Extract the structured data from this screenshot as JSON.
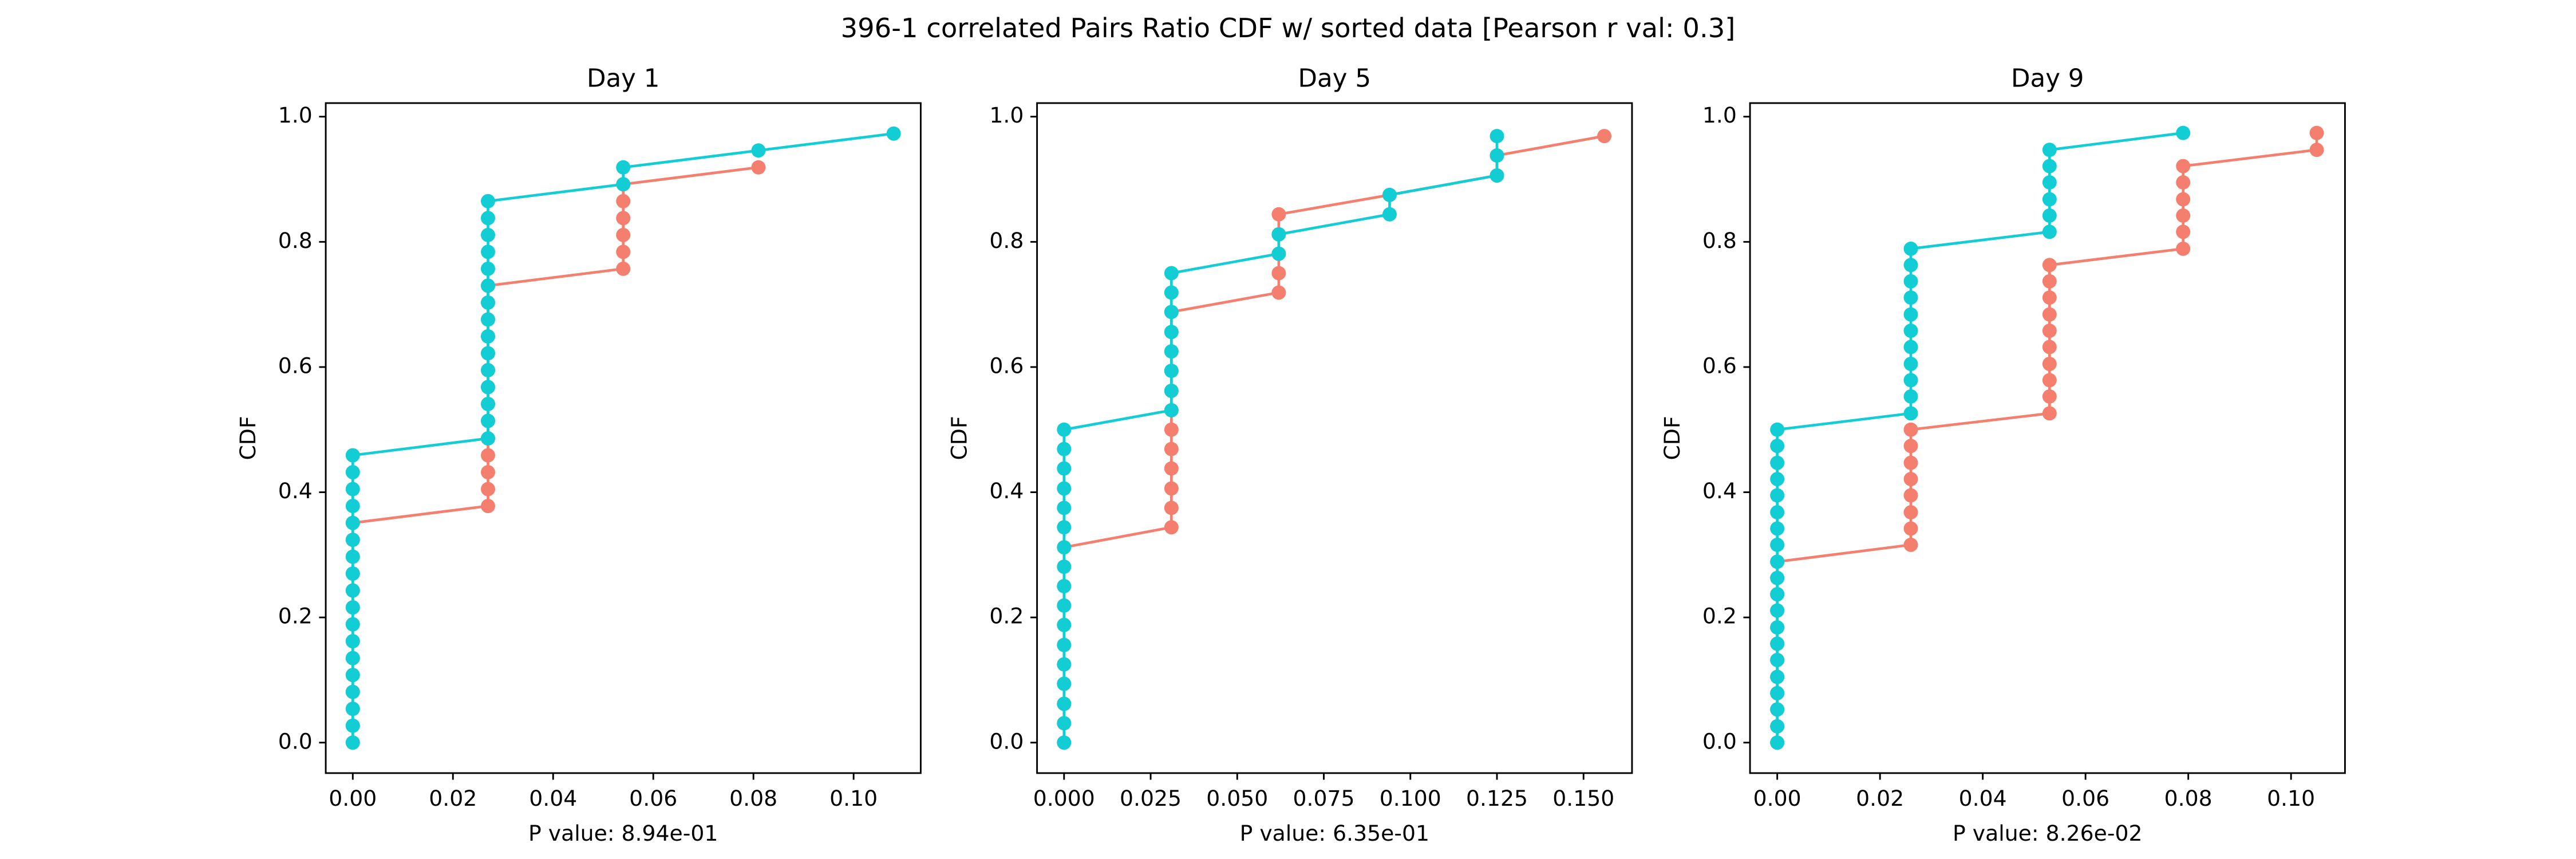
{
  "title": "396-1 correlated Pairs Ratio CDF w/ sorted data [Pearson r val: 0.3]",
  "chart_data": [
    {
      "type": "line",
      "title": "Day 1",
      "ylabel": "CDF",
      "xlabel": "P value: 8.94e-01",
      "xlim": [
        -0.0054,
        0.1134
      ],
      "ylim": [
        -0.0487,
        1.0217
      ],
      "xticks": [
        {
          "value": 0,
          "label": "0.00"
        },
        0.02,
        0.04,
        0.06,
        0.08,
        {
          "value": 0.1,
          "label": "0.10"
        }
      ],
      "yticks": [
        {
          "value": 0,
          "label": "0.0"
        },
        0.2,
        0.4,
        0.6,
        0.8,
        {
          "value": 1,
          "label": "1.0"
        }
      ],
      "series": [
        {
          "color": "#f47f6f",
          "x": [
            0,
            0,
            0,
            0,
            0,
            0,
            0,
            0,
            0,
            0,
            0,
            0,
            0,
            0,
            0.027,
            0.027,
            0.027,
            0.027,
            0.027,
            0.027,
            0.027,
            0.027,
            0.027,
            0.027,
            0.027,
            0.027,
            0.027,
            0.027,
            0.054,
            0.054,
            0.054,
            0.054,
            0.054,
            0.054,
            0.081
          ],
          "values": [
            0,
            0.027,
            0.054,
            0.081,
            0.108,
            0.135,
            0.162,
            0.189,
            0.216,
            0.243,
            0.27,
            0.297,
            0.324,
            0.351,
            0.378,
            0.405,
            0.432,
            0.459,
            0.486,
            0.514,
            0.541,
            0.568,
            0.595,
            0.622,
            0.649,
            0.676,
            0.703,
            0.73,
            0.757,
            0.784,
            0.811,
            0.838,
            0.865,
            0.892,
            0.919
          ]
        },
        {
          "color": "#12cdd4",
          "x": [
            0,
            0,
            0,
            0,
            0,
            0,
            0,
            0,
            0,
            0,
            0,
            0,
            0,
            0,
            0,
            0,
            0,
            0,
            0.027,
            0.027,
            0.027,
            0.027,
            0.027,
            0.027,
            0.027,
            0.027,
            0.027,
            0.027,
            0.027,
            0.027,
            0.027,
            0.027,
            0.027,
            0.054,
            0.054,
            0.081,
            0.108
          ],
          "values": [
            0,
            0.027,
            0.054,
            0.081,
            0.108,
            0.135,
            0.162,
            0.189,
            0.216,
            0.243,
            0.27,
            0.297,
            0.324,
            0.351,
            0.378,
            0.405,
            0.432,
            0.459,
            0.486,
            0.514,
            0.541,
            0.568,
            0.595,
            0.622,
            0.649,
            0.676,
            0.703,
            0.73,
            0.757,
            0.784,
            0.811,
            0.838,
            0.865,
            0.892,
            0.919,
            0.946,
            0.973
          ]
        }
      ]
    },
    {
      "type": "line",
      "title": "Day 5",
      "ylabel": "CDF",
      "xlabel": "P value: 6.35e-01",
      "xlim": [
        -0.0078,
        0.164
      ],
      "ylim": [
        -0.0487,
        1.0217
      ],
      "xticks": [
        {
          "value": 0,
          "label": "0.000"
        },
        0.025,
        {
          "value": 0.05,
          "label": "0.050"
        },
        0.075,
        {
          "value": 0.1,
          "label": "0.100"
        },
        0.125,
        {
          "value": 0.15,
          "label": "0.150"
        }
      ],
      "yticks": [
        {
          "value": 0,
          "label": "0.0"
        },
        0.2,
        0.4,
        0.6,
        0.8,
        {
          "value": 1,
          "label": "1.0"
        }
      ],
      "series": [
        {
          "color": "#f47f6f",
          "x": [
            0,
            0,
            0,
            0,
            0,
            0,
            0,
            0,
            0,
            0,
            0,
            0.031,
            0.031,
            0.031,
            0.031,
            0.031,
            0.031,
            0.031,
            0.031,
            0.031,
            0.031,
            0.031,
            0.031,
            0.062,
            0.062,
            0.062,
            0.062,
            0.062,
            0.094,
            0.125,
            0.125,
            0.156
          ],
          "values": [
            0,
            0.031,
            0.062,
            0.094,
            0.125,
            0.156,
            0.188,
            0.219,
            0.25,
            0.281,
            0.312,
            0.344,
            0.375,
            0.406,
            0.438,
            0.469,
            0.5,
            0.531,
            0.562,
            0.594,
            0.625,
            0.656,
            0.688,
            0.719,
            0.75,
            0.781,
            0.812,
            0.844,
            0.875,
            0.906,
            0.938,
            0.969
          ]
        },
        {
          "color": "#12cdd4",
          "x": [
            0,
            0,
            0,
            0,
            0,
            0,
            0,
            0,
            0,
            0,
            0,
            0,
            0,
            0,
            0,
            0,
            0,
            0.031,
            0.031,
            0.031,
            0.031,
            0.031,
            0.031,
            0.031,
            0.031,
            0.062,
            0.062,
            0.094,
            0.094,
            0.125,
            0.125,
            0.125
          ],
          "values": [
            0,
            0.031,
            0.062,
            0.094,
            0.125,
            0.156,
            0.188,
            0.219,
            0.25,
            0.281,
            0.312,
            0.344,
            0.375,
            0.406,
            0.438,
            0.469,
            0.5,
            0.531,
            0.562,
            0.594,
            0.625,
            0.656,
            0.688,
            0.719,
            0.75,
            0.781,
            0.812,
            0.844,
            0.875,
            0.906,
            0.938,
            0.969
          ]
        }
      ]
    },
    {
      "type": "line",
      "title": "Day 9",
      "ylabel": "CDF",
      "xlabel": "P value: 8.26e-02",
      "xlim": [
        -0.0053,
        0.1105
      ],
      "ylim": [
        -0.0487,
        1.0217
      ],
      "xticks": [
        {
          "value": 0,
          "label": "0.00"
        },
        0.02,
        0.04,
        0.06,
        0.08,
        {
          "value": 0.1,
          "label": "0.10"
        }
      ],
      "yticks": [
        {
          "value": 0,
          "label": "0.0"
        },
        0.2,
        0.4,
        0.6,
        0.8,
        {
          "value": 1,
          "label": "1.0"
        }
      ],
      "series": [
        {
          "color": "#f47f6f",
          "x": [
            0,
            0,
            0,
            0,
            0,
            0,
            0,
            0,
            0,
            0,
            0,
            0,
            0.026,
            0.026,
            0.026,
            0.026,
            0.026,
            0.026,
            0.026,
            0.026,
            0.053,
            0.053,
            0.053,
            0.053,
            0.053,
            0.053,
            0.053,
            0.053,
            0.053,
            0.053,
            0.079,
            0.079,
            0.079,
            0.079,
            0.079,
            0.079,
            0.105,
            0.105
          ],
          "values": [
            0,
            0.026,
            0.053,
            0.079,
            0.105,
            0.132,
            0.158,
            0.184,
            0.211,
            0.237,
            0.263,
            0.289,
            0.316,
            0.342,
            0.368,
            0.395,
            0.421,
            0.447,
            0.474,
            0.5,
            0.526,
            0.553,
            0.579,
            0.605,
            0.632,
            0.658,
            0.684,
            0.711,
            0.737,
            0.763,
            0.789,
            0.816,
            0.842,
            0.868,
            0.895,
            0.921,
            0.947,
            0.974
          ]
        },
        {
          "color": "#12cdd4",
          "x": [
            0,
            0,
            0,
            0,
            0,
            0,
            0,
            0,
            0,
            0,
            0,
            0,
            0,
            0,
            0,
            0,
            0,
            0,
            0,
            0,
            0.026,
            0.026,
            0.026,
            0.026,
            0.026,
            0.026,
            0.026,
            0.026,
            0.026,
            0.026,
            0.026,
            0.053,
            0.053,
            0.053,
            0.053,
            0.053,
            0.053,
            0.079
          ],
          "values": [
            0,
            0.026,
            0.053,
            0.079,
            0.105,
            0.132,
            0.158,
            0.184,
            0.211,
            0.237,
            0.263,
            0.289,
            0.316,
            0.342,
            0.368,
            0.395,
            0.421,
            0.447,
            0.474,
            0.5,
            0.526,
            0.553,
            0.579,
            0.605,
            0.632,
            0.658,
            0.684,
            0.711,
            0.737,
            0.763,
            0.789,
            0.816,
            0.842,
            0.868,
            0.895,
            0.921,
            0.947,
            0.974
          ]
        }
      ]
    }
  ]
}
